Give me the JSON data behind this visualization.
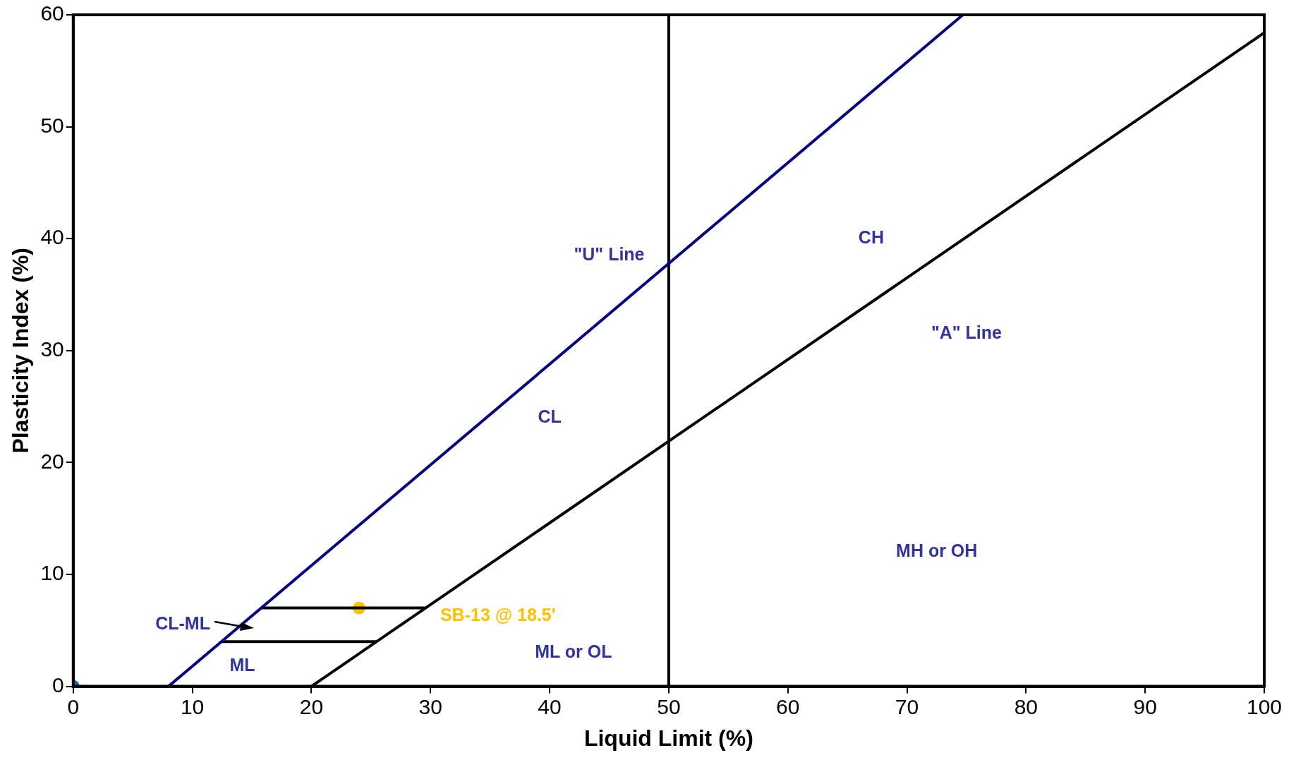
{
  "chart_data": {
    "type": "line",
    "xlabel": "Liquid Limit (%)",
    "ylabel": "Plasticity Index (%)",
    "xlim": [
      0,
      100
    ],
    "ylim": [
      0,
      60
    ],
    "xticks": [
      0,
      10,
      20,
      30,
      40,
      50,
      60,
      70,
      80,
      90,
      100
    ],
    "yticks": [
      0,
      10,
      20,
      30,
      40,
      50,
      60
    ],
    "grid": false,
    "legend": false,
    "line_style": "solid",
    "series": [
      {
        "color": "#000080",
        "x": [
          8,
          74.7
        ],
        "values": [
          0,
          60
        ]
      },
      {
        "color": "#000000",
        "x": [
          20,
          100
        ],
        "values": [
          0,
          58.4
        ]
      },
      {
        "color": "#000000",
        "x": [
          50,
          50
        ],
        "values": [
          0,
          60
        ]
      },
      {
        "color": "#000000",
        "x": [
          15.8,
          29.6
        ],
        "values": [
          7,
          7
        ]
      },
      {
        "color": "#000000",
        "x": [
          12.4,
          25.5
        ],
        "values": [
          4,
          4
        ]
      },
      {
        "type": "scatter",
        "name": "SB-13 @ 18.5'",
        "color": "#ffc000",
        "x": [
          24
        ],
        "values": [
          7
        ]
      },
      {
        "type": "scatter",
        "color": "#0070c0",
        "x": [
          0
        ],
        "values": [
          0
        ]
      }
    ],
    "annotations": [
      "\"U\" Line",
      "CH",
      "\"A\" Line",
      "CL",
      "MH or OH",
      "CL-ML",
      "ML",
      "ML or OL"
    ]
  }
}
